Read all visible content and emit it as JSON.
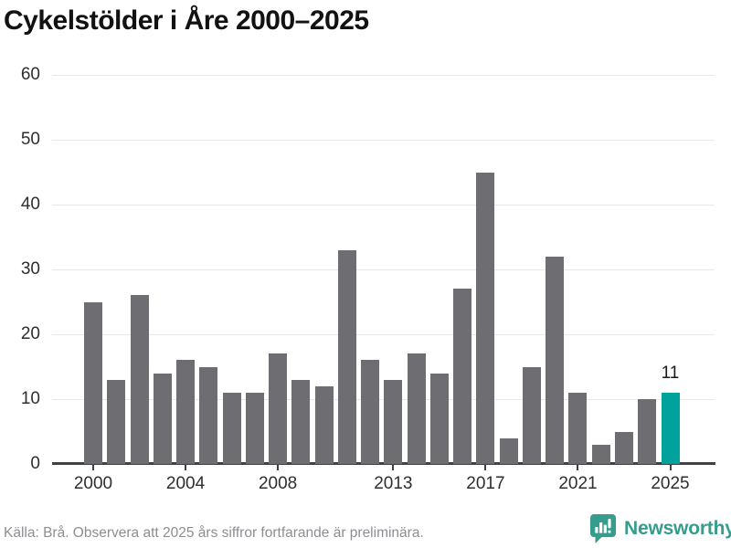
{
  "title": "Cykelstölder i Åre 2000–2025",
  "chart_data": {
    "type": "bar",
    "title": "Cykelstölder i Åre 2000–2025",
    "categories": [
      "2000",
      "2001",
      "2002",
      "2003",
      "2004",
      "2005",
      "2006",
      "2007",
      "2008",
      "2009",
      "2010",
      "2011",
      "2012",
      "2013",
      "2014",
      "2015",
      "2016",
      "2017",
      "2018",
      "2019",
      "2020",
      "2021",
      "2022",
      "2023",
      "2024",
      "2025"
    ],
    "values": [
      25,
      13,
      26,
      14,
      16,
      15,
      11,
      11,
      17,
      13,
      12,
      33,
      16,
      13,
      17,
      14,
      27,
      45,
      4,
      15,
      32,
      11,
      3,
      5,
      10,
      11
    ],
    "highlight": {
      "category": "2025",
      "value": 11,
      "label": "11"
    },
    "bar_color": "#6d6d72",
    "highlight_color": "#00a39b",
    "ylim": [
      0,
      60
    ],
    "y_ticks": [
      0,
      10,
      20,
      30,
      40,
      50,
      60
    ],
    "x_tick_labels": [
      "2000",
      "2004",
      "2008",
      "2013",
      "2017",
      "2021",
      "2025"
    ],
    "grid": "horizontal-light-gray",
    "legend": "none"
  },
  "footer": {
    "source_note": "Källa: Brå. Observera att 2025 års siffror fortfarande är preliminära.",
    "brand_name": "Newsworthy"
  },
  "colors": {
    "bar": "#6d6d72",
    "highlight": "#00a39b",
    "brand_teal": "#369c8d",
    "title_text": "#121212",
    "axis_text": "#2e2e2e",
    "muted_text": "#8d8d92",
    "gridline": "#e8e8e8",
    "axis_line": "#414144"
  }
}
